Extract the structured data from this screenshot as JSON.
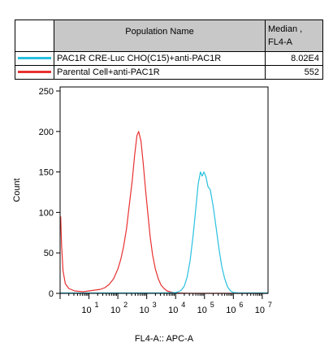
{
  "legend_table": {
    "col_population": "Population Name",
    "col_median_line1": "Median ,",
    "col_median_line2": "FL4-A",
    "rows": [
      {
        "name": "PAC1R CRE-Luc CHO(C15)+anti-PAC1R",
        "median": "8.02E4",
        "color": "#29c0e0"
      },
      {
        "name": "Parental Cell+anti-PAC1R",
        "median": "552",
        "color": "#e83030"
      }
    ]
  },
  "chart_data": {
    "type": "line",
    "title": "",
    "xlabel": "FL4-A:: APC-A",
    "ylabel": "Count",
    "xscale": "log",
    "xlim": [
      0,
      7.2
    ],
    "ylim": [
      0,
      255
    ],
    "yticks": [
      0,
      50,
      100,
      150,
      200,
      250
    ],
    "xtick_labels": [
      {
        "base": "10",
        "exp": "1"
      },
      {
        "base": "10",
        "exp": "2"
      },
      {
        "base": "10",
        "exp": "3"
      },
      {
        "base": "10",
        "exp": "4"
      },
      {
        "base": "10",
        "exp": "5"
      },
      {
        "base": "10",
        "exp": "6"
      },
      {
        "base": "10",
        "exp": "7"
      }
    ],
    "series": [
      {
        "name": "Parental Cell+anti-PAC1R",
        "color": "#e83030",
        "points": [
          [
            0.02,
            95
          ],
          [
            0.05,
            60
          ],
          [
            0.1,
            28
          ],
          [
            0.18,
            12
          ],
          [
            0.3,
            6
          ],
          [
            0.5,
            3
          ],
          [
            0.8,
            2
          ],
          [
            1.0,
            3
          ],
          [
            1.2,
            4
          ],
          [
            1.4,
            5
          ],
          [
            1.55,
            7
          ],
          [
            1.7,
            11
          ],
          [
            1.85,
            18
          ],
          [
            2.0,
            30
          ],
          [
            2.1,
            42
          ],
          [
            2.2,
            58
          ],
          [
            2.3,
            80
          ],
          [
            2.4,
            110
          ],
          [
            2.5,
            140
          ],
          [
            2.58,
            170
          ],
          [
            2.66,
            195
          ],
          [
            2.72,
            200
          ],
          [
            2.8,
            188
          ],
          [
            2.88,
            160
          ],
          [
            2.96,
            128
          ],
          [
            3.05,
            95
          ],
          [
            3.12,
            70
          ],
          [
            3.2,
            48
          ],
          [
            3.3,
            30
          ],
          [
            3.4,
            18
          ],
          [
            3.5,
            10
          ],
          [
            3.6,
            6
          ],
          [
            3.7,
            3
          ],
          [
            3.85,
            1.5
          ],
          [
            4.0,
            0.5
          ],
          [
            4.5,
            0
          ],
          [
            7.2,
            0
          ]
        ]
      },
      {
        "name": "PAC1R CRE-Luc CHO(C15)+anti-PAC1R",
        "color": "#29c0e0",
        "points": [
          [
            0,
            0.5
          ],
          [
            3.5,
            0.5
          ],
          [
            4.0,
            1
          ],
          [
            4.1,
            2
          ],
          [
            4.2,
            4
          ],
          [
            4.3,
            9
          ],
          [
            4.4,
            20
          ],
          [
            4.5,
            40
          ],
          [
            4.6,
            70
          ],
          [
            4.7,
            105
          ],
          [
            4.78,
            135
          ],
          [
            4.86,
            150
          ],
          [
            4.92,
            145
          ],
          [
            4.98,
            150
          ],
          [
            5.05,
            144
          ],
          [
            5.12,
            132
          ],
          [
            5.2,
            128
          ],
          [
            5.3,
            108
          ],
          [
            5.4,
            82
          ],
          [
            5.5,
            55
          ],
          [
            5.6,
            33
          ],
          [
            5.7,
            18
          ],
          [
            5.8,
            8
          ],
          [
            5.9,
            3
          ],
          [
            6.0,
            1
          ],
          [
            6.2,
            0.5
          ],
          [
            7.2,
            0.5
          ]
        ]
      }
    ]
  }
}
